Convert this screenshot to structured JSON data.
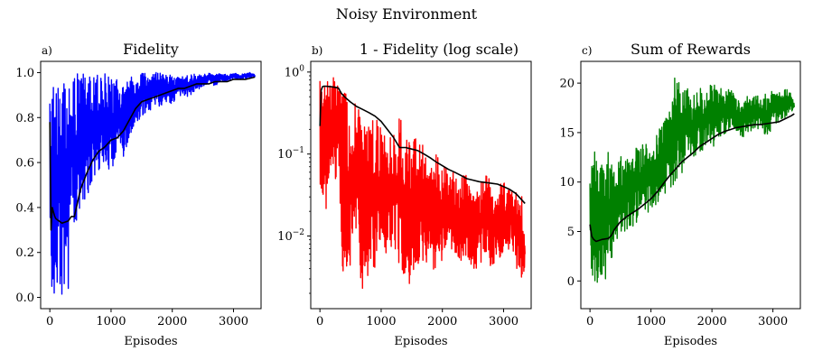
{
  "figure": {
    "title": "Noisy Environment"
  },
  "chart_data": [
    {
      "id": "a",
      "panel_label": "a)",
      "type": "line",
      "title": "Fidelity",
      "xlabel": "Episodes",
      "ylabel": "",
      "xlim": [
        -150,
        3450
      ],
      "ylim": [
        -0.05,
        1.05
      ],
      "yscale": "linear",
      "xticks": [
        0,
        1000,
        2000,
        3000
      ],
      "xtick_labels": [
        "0",
        "1000",
        "2000",
        "3000"
      ],
      "yticks": [
        0.0,
        0.2,
        0.4,
        0.6,
        0.8,
        1.0
      ],
      "ytick_labels": [
        "0.0",
        "0.2",
        "0.4",
        "0.6",
        "0.8",
        "1.0"
      ],
      "grid": false,
      "legend": "none",
      "series": [
        {
          "role": "raw",
          "color": "#0000ff",
          "x": [
            0,
            50,
            100,
            150,
            200,
            250,
            300,
            350,
            400,
            500,
            600,
            700,
            800,
            900,
            1000,
            1100,
            1200,
            1300,
            1400,
            1500,
            1600,
            1700,
            1800,
            1900,
            2000,
            2100,
            2200,
            2300,
            2400,
            2500,
            2600,
            2700,
            2800,
            2900,
            3000,
            3100,
            3200,
            3300,
            3350
          ],
          "low": [
            0.0,
            0.0,
            0.0,
            0.0,
            0.0,
            0.0,
            0.0,
            0.45,
            0.3,
            0.35,
            0.45,
            0.5,
            0.55,
            0.6,
            0.55,
            0.65,
            0.6,
            0.7,
            0.75,
            0.8,
            0.82,
            0.85,
            0.85,
            0.87,
            0.86,
            0.9,
            0.88,
            0.9,
            0.92,
            0.93,
            0.95,
            0.94,
            0.96,
            0.96,
            0.97,
            0.97,
            0.97,
            0.98,
            0.98
          ],
          "high": [
            0.95,
            1.0,
            0.99,
            1.0,
            1.0,
            0.99,
            1.0,
            0.99,
            1.0,
            0.99,
            1.0,
            1.0,
            0.99,
            1.0,
            1.0,
            0.99,
            0.97,
            0.98,
            1.0,
            1.0,
            1.0,
            1.0,
            1.0,
            0.99,
            0.99,
            0.99,
            0.98,
            1.0,
            0.99,
            0.99,
            1.0,
            0.99,
            1.0,
            0.99,
            1.0,
            0.99,
            1.0,
            1.0,
            0.99
          ]
        },
        {
          "role": "average",
          "color": "#000000",
          "x": [
            0,
            20,
            40,
            60,
            80,
            100,
            200,
            300,
            350,
            400,
            500,
            600,
            700,
            800,
            900,
            1000,
            1100,
            1200,
            1300,
            1400,
            1500,
            1600,
            1700,
            1800,
            1900,
            2000,
            2100,
            2200,
            2300,
            2400,
            2500,
            2600,
            2700,
            2800,
            2900,
            3000,
            3100,
            3200,
            3350
          ],
          "y": [
            0.78,
            0.3,
            0.4,
            0.38,
            0.36,
            0.35,
            0.33,
            0.34,
            0.36,
            0.36,
            0.48,
            0.55,
            0.61,
            0.65,
            0.67,
            0.7,
            0.71,
            0.74,
            0.79,
            0.84,
            0.87,
            0.88,
            0.89,
            0.9,
            0.91,
            0.92,
            0.93,
            0.93,
            0.94,
            0.95,
            0.95,
            0.95,
            0.96,
            0.96,
            0.96,
            0.97,
            0.97,
            0.97,
            0.98
          ]
        }
      ]
    },
    {
      "id": "b",
      "panel_label": "b)",
      "type": "line",
      "title": "1 - Fidelity (log scale)",
      "xlabel": "Episodes",
      "ylabel": "",
      "xlim": [
        -150,
        3450
      ],
      "ylim": [
        0.0013,
        1.35
      ],
      "yscale": "log",
      "xticks": [
        0,
        1000,
        2000,
        3000
      ],
      "xtick_labels": [
        "0",
        "1000",
        "2000",
        "3000"
      ],
      "yticks": [
        0.01,
        0.1,
        1
      ],
      "ytick_labels": [
        {
          "base": "10",
          "exp": "−2"
        },
        {
          "base": "10",
          "exp": "−1"
        },
        {
          "base": "10",
          "exp": "0"
        }
      ],
      "grid": false,
      "legend": "none",
      "series": [
        {
          "role": "raw",
          "color": "#ff0000",
          "x": [
            0,
            50,
            100,
            150,
            200,
            250,
            300,
            350,
            400,
            500,
            600,
            700,
            800,
            900,
            1000,
            1100,
            1200,
            1300,
            1400,
            1500,
            1600,
            1700,
            1800,
            1900,
            2000,
            2100,
            2200,
            2300,
            2400,
            2500,
            2600,
            2700,
            2800,
            2900,
            3000,
            3100,
            3200,
            3300,
            3350
          ],
          "low": [
            0.02,
            0.03,
            0.02,
            0.05,
            0.03,
            0.04,
            0.06,
            0.003,
            0.004,
            0.003,
            0.005,
            0.002,
            0.003,
            0.004,
            0.01,
            0.005,
            0.008,
            0.004,
            0.003,
            0.002,
            0.004,
            0.005,
            0.003,
            0.004,
            0.005,
            0.01,
            0.004,
            0.005,
            0.006,
            0.003,
            0.004,
            0.006,
            0.004,
            0.005,
            0.006,
            0.007,
            0.004,
            0.003,
            0.004
          ],
          "high": [
            0.95,
            1.0,
            0.99,
            1.0,
            1.0,
            0.99,
            1.0,
            0.5,
            0.6,
            0.45,
            0.4,
            0.35,
            0.25,
            0.3,
            0.2,
            0.15,
            0.2,
            0.3,
            0.15,
            0.2,
            0.18,
            0.12,
            0.08,
            0.1,
            0.08,
            0.06,
            0.07,
            0.05,
            0.06,
            0.05,
            0.04,
            0.06,
            0.05,
            0.04,
            0.05,
            0.04,
            0.04,
            0.03,
            0.01
          ]
        },
        {
          "role": "average",
          "color": "#000000",
          "x": [
            0,
            20,
            40,
            60,
            100,
            200,
            300,
            350,
            400,
            500,
            600,
            700,
            800,
            900,
            1000,
            1100,
            1200,
            1300,
            1400,
            1500,
            1600,
            1700,
            1800,
            1900,
            2000,
            2100,
            2200,
            2300,
            2400,
            2500,
            2600,
            2700,
            2800,
            2900,
            3000,
            3100,
            3200,
            3350
          ],
          "y": [
            0.22,
            0.6,
            0.66,
            0.67,
            0.67,
            0.66,
            0.64,
            0.55,
            0.5,
            0.43,
            0.38,
            0.35,
            0.32,
            0.29,
            0.25,
            0.2,
            0.16,
            0.12,
            0.12,
            0.115,
            0.11,
            0.1,
            0.09,
            0.08,
            0.072,
            0.065,
            0.06,
            0.055,
            0.05,
            0.048,
            0.046,
            0.045,
            0.044,
            0.043,
            0.04,
            0.037,
            0.033,
            0.025
          ]
        }
      ]
    },
    {
      "id": "c",
      "panel_label": "c)",
      "type": "line",
      "title": "Sum of Rewards",
      "xlabel": "Episodes",
      "ylabel": "",
      "xlim": [
        -150,
        3450
      ],
      "ylim": [
        -2.8,
        22.2
      ],
      "yscale": "linear",
      "xticks": [
        0,
        1000,
        2000,
        3000
      ],
      "xtick_labels": [
        "0",
        "1000",
        "2000",
        "3000"
      ],
      "yticks": [
        0,
        5,
        10,
        15,
        20
      ],
      "ytick_labels": [
        "0",
        "5",
        "10",
        "15",
        "20"
      ],
      "grid": false,
      "legend": "none",
      "series": [
        {
          "role": "raw",
          "color": "#008000",
          "x": [
            0,
            50,
            100,
            150,
            200,
            250,
            300,
            350,
            400,
            500,
            600,
            700,
            800,
            900,
            1000,
            1100,
            1200,
            1300,
            1400,
            1500,
            1600,
            1700,
            1800,
            1900,
            2000,
            2100,
            2200,
            2300,
            2400,
            2500,
            2600,
            2700,
            2800,
            2900,
            3000,
            3100,
            3200,
            3300,
            3350
          ],
          "low": [
            1.5,
            0.0,
            -1.5,
            0.5,
            -1.0,
            0.0,
            1.0,
            -1.5,
            3.5,
            4.5,
            5.0,
            5.5,
            6.0,
            6.5,
            6.8,
            7.5,
            8.0,
            9.0,
            10.0,
            10.5,
            11.5,
            12.5,
            13.0,
            13.5,
            13.5,
            14.0,
            14.5,
            15.5,
            15.0,
            14.5,
            15.0,
            15.0,
            15.5,
            14.5,
            15.5,
            16.0,
            16.5,
            17.0,
            17.5
          ],
          "high": [
            10.0,
            14.0,
            12.5,
            11.0,
            13.0,
            11.5,
            13.5,
            12.0,
            11.0,
            13.0,
            12.5,
            14.0,
            13.5,
            14.0,
            14.5,
            15.0,
            16.5,
            17.5,
            21.0,
            19.5,
            20.0,
            19.0,
            19.5,
            19.5,
            20.5,
            19.0,
            20.0,
            19.5,
            18.5,
            18.0,
            19.0,
            19.0,
            18.5,
            19.0,
            19.5,
            19.0,
            19.5,
            19.0,
            18.0
          ]
        },
        {
          "role": "average",
          "color": "#000000",
          "x": [
            0,
            30,
            60,
            100,
            200,
            300,
            350,
            400,
            500,
            600,
            700,
            800,
            900,
            1000,
            1100,
            1200,
            1300,
            1400,
            1500,
            1600,
            1700,
            1800,
            1900,
            2000,
            2100,
            2200,
            2300,
            2400,
            2500,
            2600,
            2700,
            2800,
            2900,
            3000,
            3100,
            3200,
            3300,
            3350
          ],
          "y": [
            5.7,
            4.5,
            4.2,
            4.0,
            4.2,
            4.3,
            4.6,
            5.2,
            6.0,
            6.5,
            6.9,
            7.3,
            7.8,
            8.3,
            9.0,
            9.8,
            10.6,
            11.3,
            12.0,
            12.5,
            13.0,
            13.6,
            14.0,
            14.4,
            14.8,
            15.1,
            15.3,
            15.5,
            15.6,
            15.7,
            15.8,
            15.8,
            15.9,
            16.0,
            16.1,
            16.4,
            16.7,
            16.9
          ]
        }
      ]
    }
  ]
}
